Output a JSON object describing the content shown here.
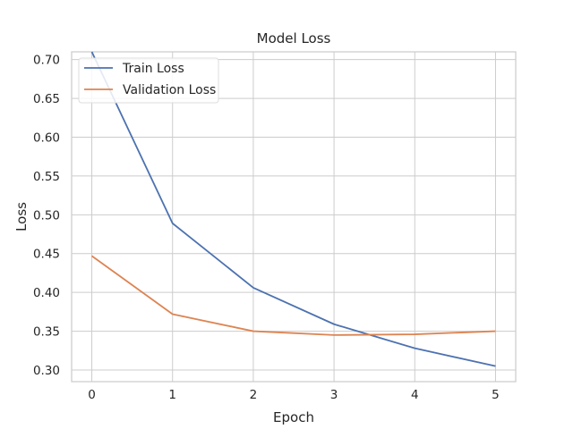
{
  "chart_data": {
    "type": "line",
    "title": "Model Loss",
    "xlabel": "Epoch",
    "ylabel": "Loss",
    "x": [
      0,
      1,
      2,
      3,
      4,
      5
    ],
    "xlim": [
      -0.25,
      5.25
    ],
    "ylim": [
      0.285,
      0.71
    ],
    "x_ticks": [
      0,
      1,
      2,
      3,
      4,
      5
    ],
    "y_ticks": [
      0.3,
      0.35,
      0.4,
      0.45,
      0.5,
      0.55,
      0.6,
      0.65,
      0.7
    ],
    "y_tick_labels": [
      "0.30",
      "0.35",
      "0.40",
      "0.45",
      "0.50",
      "0.55",
      "0.60",
      "0.65",
      "0.70"
    ],
    "grid": true,
    "legend_position": "top-left",
    "series": [
      {
        "name": "Train Loss",
        "color": "#4c72b0",
        "values": [
          0.71,
          0.489,
          0.406,
          0.359,
          0.328,
          0.305
        ]
      },
      {
        "name": "Validation Loss",
        "color": "#dd8452",
        "values": [
          0.447,
          0.372,
          0.35,
          0.345,
          0.346,
          0.35
        ]
      }
    ]
  }
}
